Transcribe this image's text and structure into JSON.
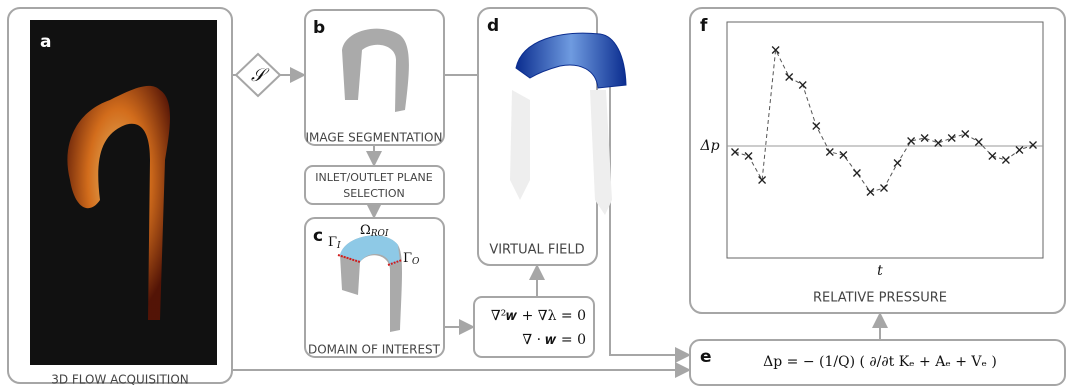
{
  "panels": {
    "a": {
      "letter": "a",
      "caption": "3D FLOW ACQUISITION"
    },
    "operator": "𝒮",
    "b": {
      "letter": "b",
      "caption": "IMAGE SEGMENTATION"
    },
    "selection": {
      "caption": [
        "INLET/OUTLET PLANE",
        "SELECTION"
      ]
    },
    "c": {
      "letter": "c",
      "caption": "DOMAIN OF INTEREST",
      "omega": "Ω",
      "omega_sub": "ROI",
      "gamma_in": "Γ",
      "gamma_in_sub": "I",
      "gamma_out": "Γ",
      "gamma_out_sub": "O"
    },
    "d": {
      "letter": "d",
      "caption": "VIRTUAL FIELD"
    },
    "equations": [
      "∇²𝒘 + ∇λ = 0",
      "∇ · 𝒘 = 0"
    ],
    "e": {
      "letter": "e",
      "formula": "Δp = − (1/Q) ( ∂/∂t Kₑ + Aₑ + Vₑ )"
    },
    "f": {
      "letter": "f",
      "caption": "RELATIVE PRESSURE",
      "ylabel": "Δp",
      "xlabel": "t",
      "plot": {
        "type": "line",
        "values": [
          -0.6,
          -1.0,
          -3.4,
          9.6,
          6.9,
          6.1,
          2.0,
          -0.6,
          -0.9,
          -2.7,
          -4.6,
          -4.2,
          -1.7,
          0.5,
          0.8,
          0.3,
          0.8,
          1.2,
          0.4,
          -1.0,
          -1.4,
          -0.4,
          0.1
        ],
        "ylim": [
          -11.2,
          12.4
        ],
        "zero_line": true,
        "color": "#222222"
      }
    }
  }
}
